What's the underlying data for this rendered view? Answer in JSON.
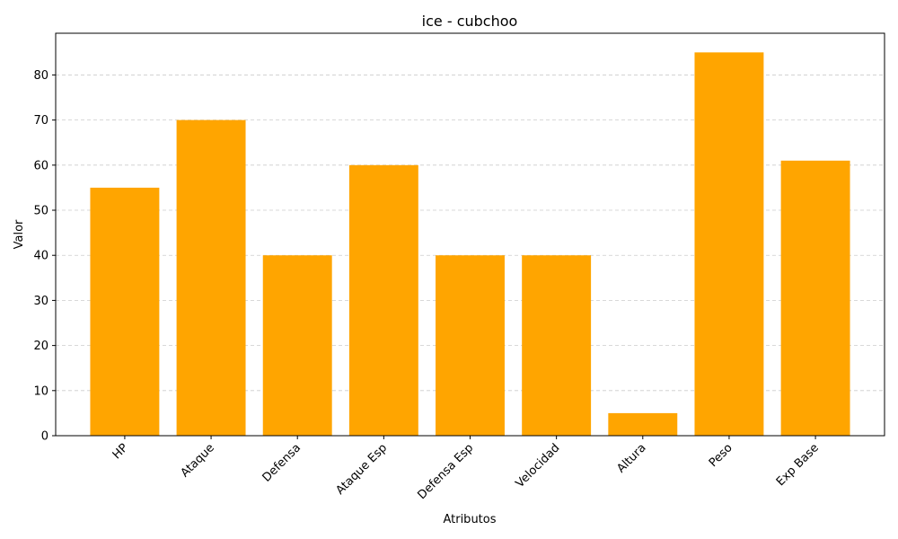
{
  "chart_data": {
    "type": "bar",
    "title": "ice - cubchoo",
    "xlabel": "Atributos",
    "ylabel": "Valor",
    "categories": [
      "HP",
      "Ataque",
      "Defensa",
      "Ataque Esp",
      "Defensa Esp",
      "Velocidad",
      "Altura",
      "Peso",
      "Exp Base"
    ],
    "values": [
      55,
      70,
      40,
      60,
      40,
      40,
      5,
      85,
      61
    ],
    "ylim": [
      0,
      89.25
    ],
    "yticks": [
      0,
      10,
      20,
      30,
      40,
      50,
      60,
      70,
      80
    ],
    "grid": "y-dashed",
    "bar_color": "#ffa500",
    "legend": "none"
  }
}
